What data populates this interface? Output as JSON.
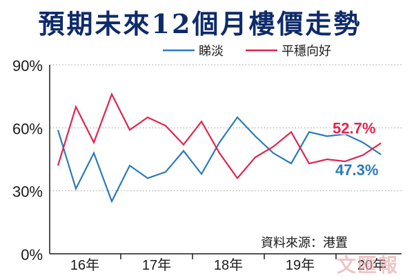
{
  "chart_data": {
    "type": "line",
    "title": "預期未來12個月樓價走勢",
    "xlabel": "",
    "ylabel": "",
    "ylim": [
      0,
      90
    ],
    "y_ticks": [
      "0%",
      "30%",
      "60%",
      "90%"
    ],
    "x_tick_labels": [
      "16年",
      "17年",
      "18年",
      "19年",
      "20年"
    ],
    "x": [
      "16Q1",
      "16Q2",
      "16Q3",
      "16Q4",
      "17Q1",
      "17Q2",
      "17Q3",
      "17Q4",
      "18Q1",
      "18Q2",
      "18Q3",
      "18Q4",
      "19Q1",
      "19Q2",
      "19Q3",
      "19Q4",
      "20Q1",
      "20Q2",
      "20Q3",
      "20Q4"
    ],
    "grid": true,
    "legend_position": "top",
    "series": [
      {
        "name": "睇淡",
        "color": "#2a7ab8",
        "values": [
          59,
          31,
          48,
          25,
          42,
          36,
          39,
          49,
          38,
          53,
          65,
          56,
          48,
          43,
          58,
          56,
          57,
          53,
          47.3,
          null
        ]
      },
      {
        "name": "平穩向好",
        "color": "#e0234e",
        "values": [
          42,
          70,
          53,
          76,
          59,
          65,
          61,
          52,
          63,
          48,
          36,
          46,
          51,
          58,
          43,
          45,
          44,
          47,
          52.7,
          null
        ]
      }
    ],
    "annotations": [
      {
        "text": "52.7%",
        "color": "#e0234e"
      },
      {
        "text": "47.3%",
        "color": "#2a7ab8"
      }
    ],
    "source": "資料來源：港置"
  },
  "watermark": "文匯報",
  "colors": {
    "axis": "#1a1a1a",
    "grid": "#9a9a9a",
    "title": "#0d2a6b"
  }
}
